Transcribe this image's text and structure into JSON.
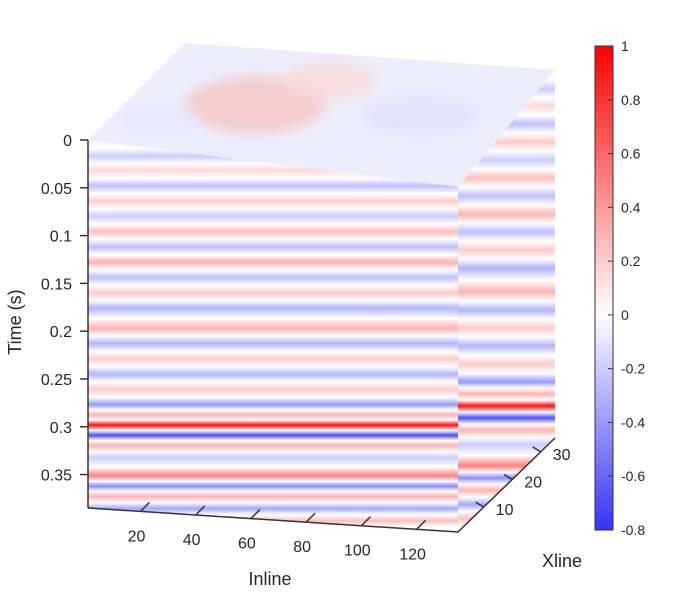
{
  "chart_data": {
    "type": "heatmap",
    "subtype": "seismic-3d-volume-cube",
    "colormap": "blue-white-red",
    "color_low": "#0000ff",
    "color_mid": "#ffffff",
    "color_high": "#ff0000",
    "xlabel": "Inline",
    "ylabel": "Time (s)",
    "zlabel": "Xline",
    "inline_range": [
      1,
      135
    ],
    "inline_ticks": [
      "20",
      "40",
      "60",
      "80",
      "100",
      "120"
    ],
    "xline_range": [
      1,
      35
    ],
    "xline_ticks": [
      "10",
      "20",
      "30"
    ],
    "time_range": [
      0,
      0.385
    ],
    "time_ticks": [
      "0",
      "0.05",
      "0.1",
      "0.15",
      "0.2",
      "0.25",
      "0.3",
      "0.35"
    ],
    "colorbar": {
      "range": [
        -0.8,
        1
      ],
      "ticks": [
        "1",
        "0.8",
        "0.6",
        "0.4",
        "0.2",
        "0",
        "-0.2",
        "-0.4",
        "-0.6",
        "-0.8"
      ]
    },
    "reflectors": [
      {
        "time": 0.016,
        "amplitude": -0.2
      },
      {
        "time": 0.03,
        "amplitude": 0.15
      },
      {
        "time": 0.045,
        "amplitude": -0.25
      },
      {
        "time": 0.06,
        "amplitude": 0.2
      },
      {
        "time": 0.075,
        "amplitude": -0.2
      },
      {
        "time": 0.09,
        "amplitude": 0.25
      },
      {
        "time": 0.105,
        "amplitude": -0.25
      },
      {
        "time": 0.12,
        "amplitude": 0.3
      },
      {
        "time": 0.135,
        "amplitude": -0.25
      },
      {
        "time": 0.15,
        "amplitude": 0.2
      },
      {
        "time": 0.165,
        "amplitude": -0.3
      },
      {
        "time": 0.185,
        "amplitude": 0.3
      },
      {
        "time": 0.2,
        "amplitude": -0.3
      },
      {
        "time": 0.215,
        "amplitude": 0.2
      },
      {
        "time": 0.23,
        "amplitude": -0.3
      },
      {
        "time": 0.245,
        "amplitude": 0.2
      },
      {
        "time": 0.26,
        "amplitude": -0.4
      },
      {
        "time": 0.27,
        "amplitude": 0.3
      },
      {
        "time": 0.28,
        "amplitude": 0.95
      },
      {
        "time": 0.29,
        "amplitude": -0.7
      },
      {
        "time": 0.3,
        "amplitude": 0.3
      },
      {
        "time": 0.312,
        "amplitude": -0.2
      },
      {
        "time": 0.33,
        "amplitude": 0.5
      },
      {
        "time": 0.34,
        "amplitude": -0.45
      },
      {
        "time": 0.35,
        "amplitude": 0.3
      },
      {
        "time": 0.362,
        "amplitude": -0.35
      },
      {
        "time": 0.374,
        "amplitude": 0.25
      }
    ]
  }
}
